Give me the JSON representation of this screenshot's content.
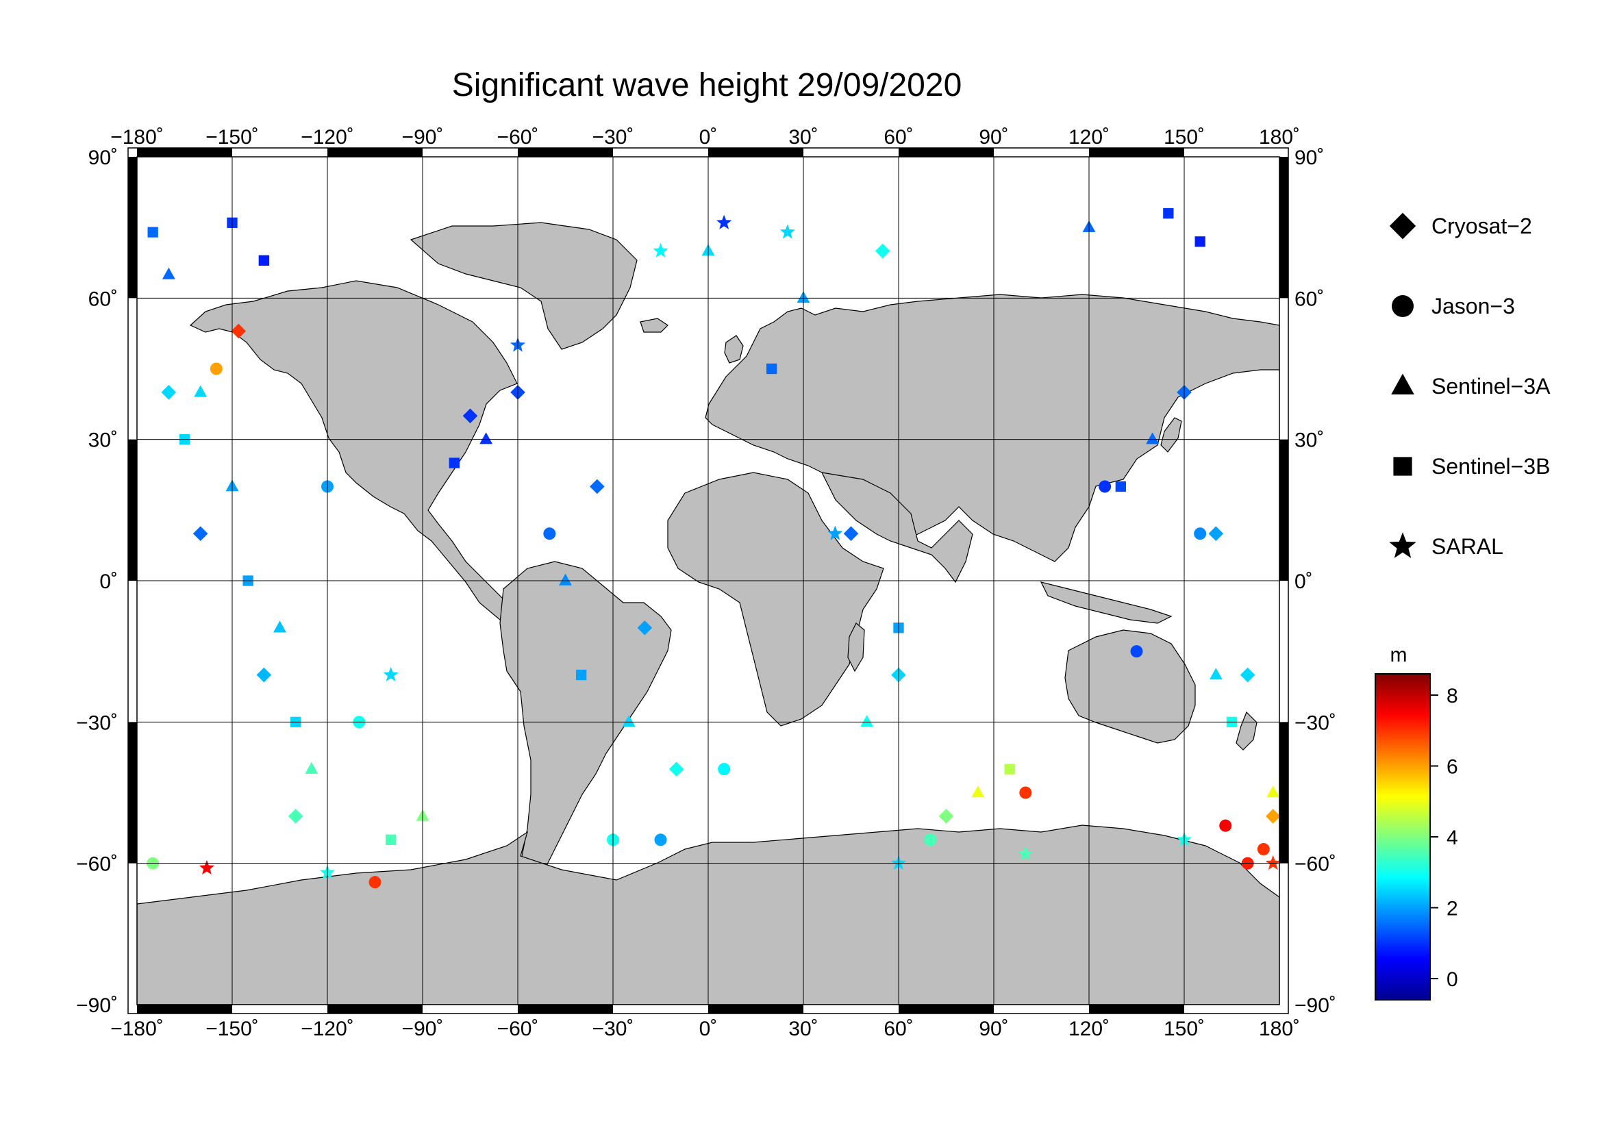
{
  "title": "Significant wave height 29/09/2020",
  "lon_ticks": [
    {
      "value": -180,
      "label": "−180˚"
    },
    {
      "value": -150,
      "label": "−150˚"
    },
    {
      "value": -120,
      "label": "−120˚"
    },
    {
      "value": -90,
      "label": "−90˚"
    },
    {
      "value": -60,
      "label": "−60˚"
    },
    {
      "value": -30,
      "label": "−30˚"
    },
    {
      "value": 0,
      "label": "0˚"
    },
    {
      "value": 30,
      "label": "30˚"
    },
    {
      "value": 60,
      "label": "60˚"
    },
    {
      "value": 90,
      "label": "90˚"
    },
    {
      "value": 120,
      "label": "120˚"
    },
    {
      "value": 150,
      "label": "150˚"
    },
    {
      "value": 180,
      "label": "180˚"
    }
  ],
  "lat_ticks": [
    {
      "value": 90,
      "label": "90˚"
    },
    {
      "value": 60,
      "label": "60˚"
    },
    {
      "value": 30,
      "label": "30˚"
    },
    {
      "value": 0,
      "label": "0˚"
    },
    {
      "value": -30,
      "label": "−30˚"
    },
    {
      "value": -60,
      "label": "−60˚"
    },
    {
      "value": -90,
      "label": "−90˚"
    }
  ],
  "legend": [
    {
      "marker": "diamond",
      "label": "Cryosat−2"
    },
    {
      "marker": "circle",
      "label": "Jason−3"
    },
    {
      "marker": "triangle",
      "label": "Sentinel−3A"
    },
    {
      "marker": "square",
      "label": "Sentinel−3B"
    },
    {
      "marker": "star",
      "label": "SARAL"
    }
  ],
  "colorbar": {
    "unit": "m",
    "range": [
      -0.6,
      8.6
    ],
    "ticks": [
      {
        "value": 0,
        "label": "0"
      },
      {
        "value": 2,
        "label": "2"
      },
      {
        "value": 4,
        "label": "4"
      },
      {
        "value": 6,
        "label": "6"
      },
      {
        "value": 8,
        "label": "8"
      }
    ],
    "colormap": "jet"
  },
  "colors": {
    "land": "#bebebe",
    "ocean": "#ffffff",
    "grid": "#000000"
  },
  "chart_data": {
    "type": "scatter",
    "projection": "plate-carree",
    "xlim": [
      -180,
      180
    ],
    "ylim": [
      -90,
      90
    ],
    "xlabel": "",
    "ylabel": "",
    "grid": true,
    "legend_position": "right",
    "value_unit": "m",
    "series": [
      {
        "name": "Cryosat−2",
        "marker": "diamond",
        "points": [
          [
            -148,
            53,
            7.0
          ],
          [
            -170,
            40,
            2.5
          ],
          [
            -160,
            10,
            1.5
          ],
          [
            -140,
            -20,
            2.2
          ],
          [
            -130,
            -50,
            3.5
          ],
          [
            -75,
            35,
            1.0
          ],
          [
            -60,
            40,
            1.2
          ],
          [
            -35,
            20,
            1.5
          ],
          [
            -20,
            -10,
            2.0
          ],
          [
            -10,
            -40,
            3.0
          ],
          [
            55,
            70,
            3.0
          ],
          [
            45,
            10,
            1.5
          ],
          [
            60,
            -20,
            2.5
          ],
          [
            75,
            -50,
            4.0
          ],
          [
            150,
            40,
            1.5
          ],
          [
            160,
            10,
            2.0
          ],
          [
            170,
            -20,
            2.5
          ],
          [
            178,
            -50,
            6.0
          ]
        ]
      },
      {
        "name": "Jason−3",
        "marker": "circle",
        "points": [
          [
            -155,
            45,
            6.0
          ],
          [
            -120,
            20,
            2.0
          ],
          [
            -105,
            -64,
            7.0
          ],
          [
            -110,
            -30,
            3.0
          ],
          [
            -50,
            10,
            1.5
          ],
          [
            -30,
            -55,
            3.0
          ],
          [
            -15,
            -55,
            2.0
          ],
          [
            5,
            -40,
            2.8
          ],
          [
            70,
            -55,
            3.5
          ],
          [
            100,
            -45,
            7.0
          ],
          [
            125,
            20,
            1.0
          ],
          [
            135,
            -15,
            1.2
          ],
          [
            163,
            -52,
            7.5
          ],
          [
            170,
            -60,
            7.2
          ],
          [
            175,
            -57,
            7.0
          ],
          [
            155,
            10,
            1.8
          ],
          [
            -175,
            -60,
            4.0
          ]
        ]
      },
      {
        "name": "Sentinel−3A",
        "marker": "triangle",
        "points": [
          [
            -170,
            65,
            1.5
          ],
          [
            -160,
            40,
            2.5
          ],
          [
            -150,
            20,
            2.0
          ],
          [
            -135,
            -10,
            2.3
          ],
          [
            -125,
            -40,
            3.5
          ],
          [
            -90,
            -50,
            4.0
          ],
          [
            -70,
            30,
            1.0
          ],
          [
            -45,
            0,
            1.8
          ],
          [
            -25,
            -30,
            2.5
          ],
          [
            0,
            70,
            2.5
          ],
          [
            30,
            60,
            2.0
          ],
          [
            50,
            -30,
            3.0
          ],
          [
            85,
            -45,
            5.0
          ],
          [
            120,
            75,
            1.5
          ],
          [
            140,
            30,
            1.5
          ],
          [
            160,
            -20,
            2.5
          ],
          [
            178,
            -45,
            5.0
          ]
        ]
      },
      {
        "name": "Sentinel−3B",
        "marker": "square",
        "points": [
          [
            -175,
            74,
            1.5
          ],
          [
            -150,
            76,
            1.0
          ],
          [
            -140,
            68,
            0.8
          ],
          [
            -165,
            30,
            2.5
          ],
          [
            -145,
            0,
            2.0
          ],
          [
            -130,
            -30,
            2.5
          ],
          [
            -100,
            -55,
            3.5
          ],
          [
            -80,
            25,
            1.0
          ],
          [
            -40,
            -20,
            2.0
          ],
          [
            20,
            45,
            1.5
          ],
          [
            60,
            -10,
            2.0
          ],
          [
            95,
            -40,
            4.5
          ],
          [
            145,
            78,
            1.0
          ],
          [
            155,
            72,
            0.8
          ],
          [
            130,
            20,
            1.2
          ],
          [
            165,
            -30,
            3.0
          ]
        ]
      },
      {
        "name": "SARAL",
        "marker": "star",
        "points": [
          [
            -158,
            -61,
            7.5
          ],
          [
            -120,
            -62,
            3.0
          ],
          [
            -60,
            50,
            1.5
          ],
          [
            5,
            76,
            1.0
          ],
          [
            25,
            74,
            2.5
          ],
          [
            -15,
            70,
            2.8
          ],
          [
            40,
            10,
            2.0
          ],
          [
            60,
            -60,
            2.5
          ],
          [
            100,
            -58,
            3.5
          ],
          [
            150,
            -55,
            3.0
          ],
          [
            178,
            -60,
            7.0
          ],
          [
            -100,
            -20,
            2.5
          ]
        ]
      }
    ]
  }
}
